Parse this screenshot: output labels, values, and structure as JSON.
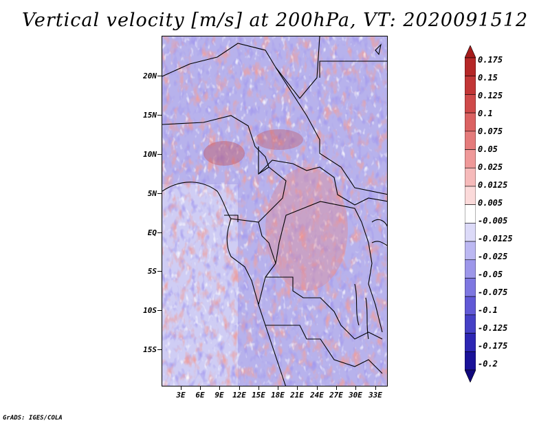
{
  "title": "Vertical velocity [m/s] at 200hPa, VT: 2020091512",
  "credit": "GrADS: IGES/COLA",
  "lat_labels": [
    "20N",
    "15N",
    "10N",
    "5N",
    "EQ",
    "5S",
    "10S",
    "15S"
  ],
  "lon_labels": [
    "3E",
    "6E",
    "9E",
    "12E",
    "15E",
    "18E",
    "21E",
    "24E",
    "27E",
    "30E",
    "33E"
  ],
  "colorbar": {
    "labels": [
      "0.175",
      "0.15",
      "0.125",
      "0.1",
      "0.075",
      "0.05",
      "0.025",
      "0.0125",
      "0.005",
      "-0.005",
      "-0.0125",
      "-0.025",
      "-0.05",
      "-0.075",
      "-0.1",
      "-0.125",
      "-0.175",
      "-0.2"
    ],
    "colors": [
      "#a51c1c",
      "#b52727",
      "#c23636",
      "#cf4a4a",
      "#db6262",
      "#e57b7b",
      "#ef9999",
      "#f6baba",
      "#fbdada",
      "#ffffff",
      "#dcdaf8",
      "#bcb8f2",
      "#9d97ea",
      "#7e77e1",
      "#6159d6",
      "#4540c6",
      "#2d26b3",
      "#1a1299",
      "#10077c"
    ]
  },
  "colors": {
    "land_border": "#000000",
    "field_base": "#b9b4ec"
  }
}
